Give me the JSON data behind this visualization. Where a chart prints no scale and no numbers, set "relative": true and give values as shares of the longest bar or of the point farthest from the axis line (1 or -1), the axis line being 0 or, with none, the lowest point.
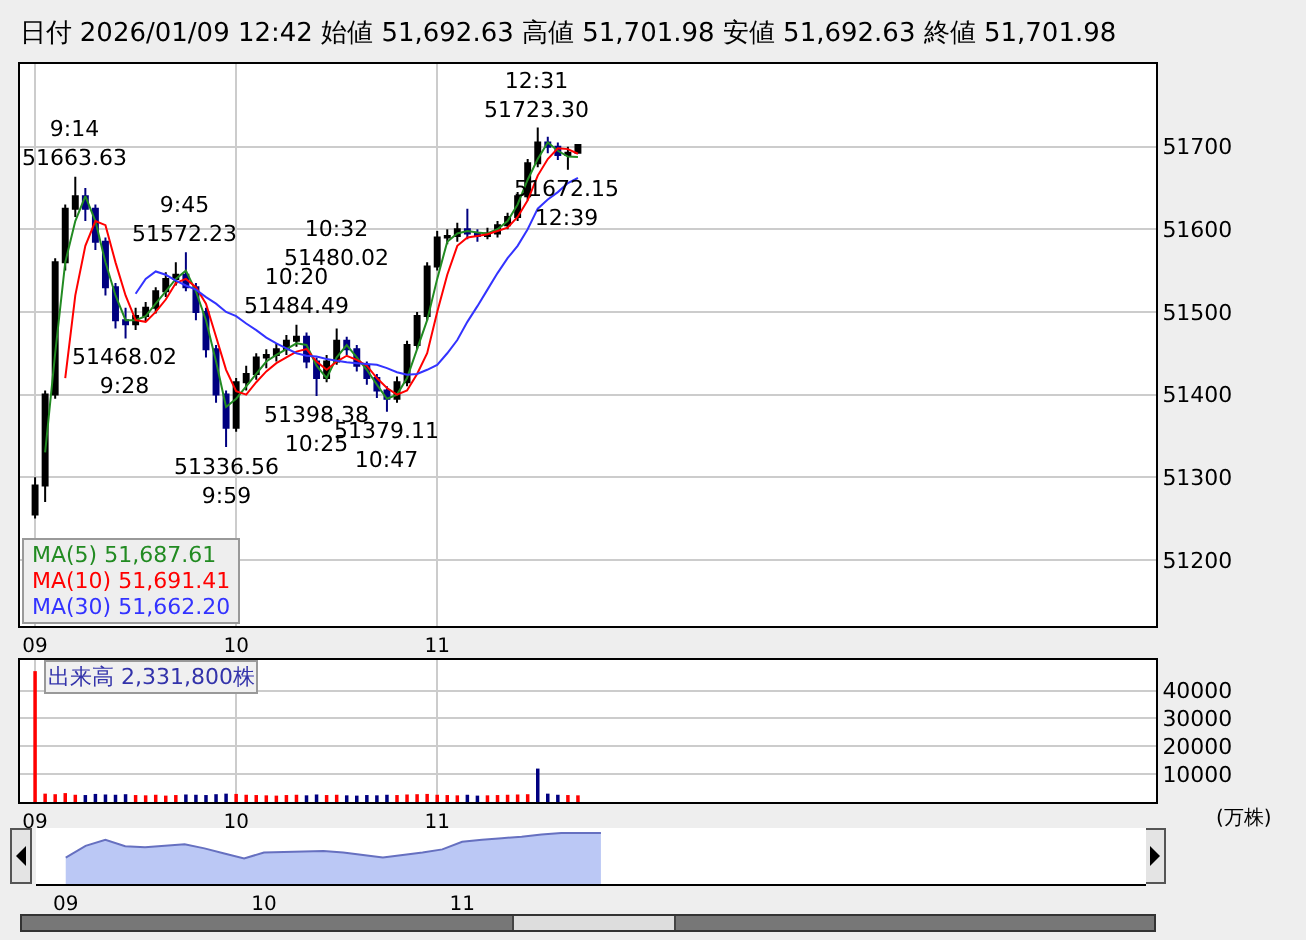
{
  "chart_data": [
    {
      "type": "candlestick",
      "title": "日付 2026/01/09 12:42 始値 51,692.63 高値 51,701.98 安値 51,692.63 終値 51,701.98",
      "categories": [
        "09",
        null,
        null,
        null,
        null,
        null,
        null,
        null,
        null,
        null,
        null,
        null,
        null,
        null,
        null,
        null,
        null,
        null,
        null,
        null,
        "10",
        null,
        null,
        null,
        null,
        null,
        null,
        null,
        null,
        null,
        null,
        null,
        null,
        null,
        null,
        null,
        null,
        null,
        null,
        null,
        "11",
        null,
        null,
        null,
        null,
        null,
        null,
        null,
        null,
        null,
        null,
        null,
        null,
        null,
        null,
        null,
        null,
        null,
        null,
        null,
        null,
        null,
        null,
        null,
        null,
        null,
        null,
        null,
        null,
        null,
        null,
        null,
        null,
        null,
        null,
        null,
        null,
        null,
        null,
        null,
        null,
        null,
        null,
        null,
        null,
        null,
        null,
        null,
        null,
        null,
        null,
        null,
        null,
        null,
        null,
        null,
        null,
        null,
        null,
        null,
        null,
        null,
        null,
        null,
        null,
        null,
        null,
        null,
        null,
        null,
        null,
        null
      ],
      "ohlc": [
        [
          51255,
          51300,
          51250,
          51290
        ],
        [
          51290,
          51405,
          51270,
          51400
        ],
        [
          51400,
          51565,
          51395,
          51560
        ],
        [
          51560,
          51630,
          51550,
          51625
        ],
        [
          51625,
          51663.63,
          51615,
          51640
        ],
        [
          51640,
          51650,
          51610,
          51625
        ],
        [
          51625,
          51630,
          51575,
          51585
        ],
        [
          51585,
          51590,
          51520,
          51530
        ],
        [
          51530,
          51535,
          51480,
          51490
        ],
        [
          51490,
          51505,
          51468.02,
          51485
        ],
        [
          51485,
          51505,
          51478,
          51495
        ],
        [
          51495,
          51512,
          51488,
          51505
        ],
        [
          51505,
          51530,
          51498,
          51525
        ],
        [
          51525,
          51548,
          51518,
          51540
        ],
        [
          51540,
          51560,
          51532,
          51545
        ],
        [
          51545,
          51572.23,
          51525,
          51530
        ],
        [
          51530,
          51535,
          51490,
          51500
        ],
        [
          51500,
          51505,
          51445,
          51455
        ],
        [
          51455,
          51460,
          51390,
          51400
        ],
        [
          51400,
          51405,
          51336.56,
          51360
        ],
        [
          51360,
          51420,
          51355,
          51415
        ],
        [
          51415,
          51435,
          51405,
          51425
        ],
        [
          51425,
          51450,
          51418,
          51445
        ],
        [
          51445,
          51455,
          51432,
          51448
        ],
        [
          51448,
          51462,
          51440,
          51455
        ],
        [
          51455,
          51472,
          51448,
          51465
        ],
        [
          51465,
          51484.49,
          51458,
          51470
        ],
        [
          51470,
          51475,
          51432,
          51440
        ],
        [
          51440,
          51445,
          51398.38,
          51420
        ],
        [
          51420,
          51448,
          51415,
          51440
        ],
        [
          51440,
          51480.02,
          51436,
          51465
        ],
        [
          51465,
          51470,
          51448,
          51455
        ],
        [
          51455,
          51460,
          51428,
          51435
        ],
        [
          51435,
          51440,
          51412,
          51420
        ],
        [
          51420,
          51425,
          51396,
          51405
        ],
        [
          51405,
          51410,
          51379.11,
          51395
        ],
        [
          51395,
          51422,
          51390,
          51415
        ],
        [
          51415,
          51465,
          51410,
          51460
        ],
        [
          51460,
          51500,
          51455,
          51495
        ],
        [
          51495,
          51560,
          51490,
          51555
        ],
        [
          51555,
          51598,
          51550,
          51590
        ],
        [
          51590,
          51600,
          51582,
          51592
        ],
        [
          51592,
          51608,
          51585,
          51600
        ],
        [
          51600,
          51625,
          51588,
          51595
        ],
        [
          51595,
          51600,
          51585,
          51592
        ],
        [
          51592,
          51602,
          51588,
          51595
        ],
        [
          51595,
          51610,
          51590,
          51605
        ],
        [
          51605,
          51620,
          51600,
          51615
        ],
        [
          51615,
          51645,
          51610,
          51640
        ],
        [
          51640,
          51685,
          51635,
          51680
        ],
        [
          51680,
          51723.3,
          51675,
          51705
        ],
        [
          51705,
          51712,
          51692,
          51700
        ],
        [
          51700,
          51705,
          51684,
          51690
        ],
        [
          51690,
          51700,
          51672.15,
          51692.63
        ],
        [
          51692.63,
          51701.98,
          51692.63,
          51701.98
        ],
        null,
        null,
        null,
        null,
        null,
        null,
        null,
        null,
        null,
        null,
        null,
        null,
        null,
        null,
        null,
        null,
        null,
        null,
        null,
        null,
        null,
        null,
        null,
        null,
        null,
        null,
        null,
        null,
        null,
        null,
        null,
        null,
        null,
        null,
        null,
        null,
        null,
        null,
        null,
        null,
        null,
        null,
        null,
        null,
        null,
        null,
        null,
        null,
        null,
        null,
        null,
        null,
        null,
        null,
        null,
        null,
        null
      ],
      "colors": [
        "#000000",
        "#000000",
        "#000000",
        "#000000",
        "#000000",
        "#000080",
        "#000080",
        "#000080",
        "#000080",
        "#000080",
        "#000000",
        "#000000",
        "#000000",
        "#000000",
        "#000000",
        "#000080",
        "#000080",
        "#000080",
        "#000080",
        "#000080",
        "#000000",
        "#000000",
        "#000000",
        "#000000",
        "#000000",
        "#000000",
        "#000000",
        "#000080",
        "#000080",
        "#000000",
        "#000000",
        "#000080",
        "#000080",
        "#000080",
        "#000080",
        "#000080",
        "#000000",
        "#000000",
        "#000000",
        "#000000",
        "#000000",
        "#000000",
        "#000000",
        "#000080",
        "#000080",
        "#000000",
        "#000000",
        "#000000",
        "#000000",
        "#000000",
        "#000000",
        "#000080",
        "#000080",
        "#000000",
        "#000000",
        null,
        null,
        null,
        null,
        null,
        null,
        null,
        null,
        null,
        null,
        null,
        null,
        null,
        null,
        null,
        null,
        null,
        null,
        null,
        null,
        null,
        null,
        null,
        null,
        null,
        null,
        null,
        null,
        null,
        null,
        null,
        null,
        null,
        null,
        null,
        null,
        null,
        null,
        null,
        null,
        null,
        null,
        null,
        null,
        null,
        null,
        null,
        null,
        null,
        null,
        null,
        null,
        null,
        null,
        null,
        null,
        null
      ],
      "series": [
        {
          "name": "MA(5) 51,687.61",
          "type": "line",
          "color": "#228b22",
          "values": [
            null,
            51330,
            51450,
            51560,
            51610,
            51640,
            51610,
            51560,
            51520,
            51490,
            51490,
            51495,
            51510,
            51525,
            51540,
            51550,
            51525,
            51490,
            51440,
            51385,
            51395,
            51410,
            51425,
            51440,
            51448,
            51455,
            51462,
            51460,
            51435,
            51420,
            51445,
            51460,
            51445,
            51430,
            51412,
            51395,
            51400,
            51420,
            51455,
            51490,
            51540,
            51585,
            51595,
            51598,
            51596,
            51595,
            51600,
            51610,
            51630,
            51660,
            51685,
            51705,
            51695,
            51688,
            51687.61,
            null,
            null,
            null,
            null,
            null,
            null,
            null,
            null,
            null,
            null,
            null,
            null,
            null,
            null,
            null,
            null,
            null,
            null,
            null,
            null,
            null,
            null,
            null,
            null,
            null,
            null,
            null,
            null,
            null,
            null,
            null,
            null,
            null,
            null,
            null,
            null,
            null,
            null,
            null,
            null,
            null,
            null,
            null,
            null,
            null,
            null,
            null,
            null,
            null,
            null,
            null,
            null,
            null,
            null,
            null,
            null,
            null
          ]
        },
        {
          "name": "MA(10) 51,691.41",
          "type": "line",
          "color": "#ff0000",
          "values": [
            null,
            null,
            null,
            51420,
            51520,
            51580,
            51610,
            51605,
            51560,
            51520,
            51490,
            51488,
            51500,
            51515,
            51535,
            51540,
            51530,
            51510,
            51470,
            51430,
            51404,
            51400,
            51415,
            51428,
            51438,
            51445,
            51452,
            51455,
            51440,
            51430,
            51440,
            51447,
            51442,
            51435,
            51420,
            51408,
            51400,
            51405,
            51425,
            51450,
            51500,
            51545,
            51580,
            51590,
            51592,
            51594,
            51598,
            51602,
            51615,
            51635,
            51665,
            51685,
            51698,
            51697,
            51691.41,
            null,
            null,
            null,
            null,
            null,
            null,
            null,
            null,
            null,
            null,
            null,
            null,
            null,
            null,
            null,
            null,
            null,
            null,
            null,
            null,
            null,
            null,
            null,
            null,
            null,
            null,
            null,
            null,
            null,
            null,
            null,
            null,
            null,
            null,
            null,
            null,
            null,
            null,
            null,
            null,
            null,
            null,
            null,
            null,
            null,
            null,
            null,
            null,
            null,
            null,
            null,
            null,
            null,
            null,
            null,
            null,
            null
          ]
        },
        {
          "name": "MA(30) 51,662.20",
          "type": "line",
          "color": "#3333ff",
          "values": [
            null,
            null,
            null,
            null,
            null,
            null,
            null,
            null,
            null,
            null,
            51522,
            51540,
            51549,
            51545,
            51538,
            51532,
            51527,
            51518,
            51510,
            51500,
            51495,
            51486,
            51478,
            51469,
            51462,
            51456,
            51450,
            51447,
            51446,
            51443,
            51441,
            51439,
            51438,
            51437,
            51436,
            51432,
            51427,
            51424,
            51425,
            51430,
            51436,
            51450,
            51466,
            51488,
            51507,
            51527,
            51547,
            51565,
            51580,
            51600,
            51625,
            51636,
            51645,
            51656,
            51662.2,
            null,
            null,
            null,
            null,
            null,
            null,
            null,
            null,
            null,
            null,
            null,
            null,
            null,
            null,
            null,
            null,
            null,
            null,
            null,
            null,
            null,
            null,
            null,
            null,
            null,
            null,
            null,
            null,
            null,
            null,
            null,
            null,
            null,
            null,
            null,
            null,
            null,
            null,
            null,
            null,
            null,
            null,
            null,
            null,
            null,
            null,
            null,
            null,
            null,
            null,
            null,
            null,
            null,
            null,
            null,
            null,
            null
          ]
        }
      ],
      "ylim": [
        51120,
        51800
      ],
      "yticks": [
        51200,
        51300,
        51400,
        51500,
        51600,
        51700
      ],
      "annotations": [
        {
          "text": "9:14\n51663.63",
          "y": 51663.63
        },
        {
          "text": "51468.02\n9:28",
          "y": 51468.02
        },
        {
          "text": "9:45\n51572.23",
          "y": 51572.23
        },
        {
          "text": "51336.56\n9:59",
          "y": 51336.56
        },
        {
          "text": "10:20\n51484.49",
          "y": 51484.49
        },
        {
          "text": "51398.38\n10:25",
          "y": 51398.38
        },
        {
          "text": "10:32\n51480.02",
          "y": 51480.02
        },
        {
          "text": "51379.11\n10:47",
          "y": 51379.11
        },
        {
          "text": "12:31\n51723.30",
          "y": 51723.3
        },
        {
          "text": "51672.15\n12:39",
          "y": 51672.15
        }
      ],
      "grid": true,
      "legend": "bottom left"
    },
    {
      "type": "bar",
      "title": "出来高 2,331,800株",
      "ylabel": "(万株)",
      "categories": [
        "09",
        null,
        null,
        null,
        null,
        null,
        null,
        null,
        null,
        null,
        null,
        null,
        null,
        null,
        null,
        null,
        null,
        null,
        null,
        null,
        "10",
        null,
        null,
        null,
        null,
        null,
        null,
        null,
        null,
        null,
        null,
        null,
        null,
        null,
        null,
        null,
        null,
        null,
        null,
        null,
        "11",
        null,
        null,
        null,
        null,
        null,
        null,
        null,
        null,
        null,
        null,
        null,
        null,
        null,
        null,
        null,
        null,
        null,
        null,
        null,
        null,
        null,
        null,
        null,
        null,
        null,
        null,
        null,
        null,
        null,
        null,
        null,
        null,
        null,
        null,
        null,
        null,
        null,
        null,
        null,
        null,
        null,
        null,
        null,
        null,
        null,
        null,
        null,
        null,
        null,
        null,
        null,
        null,
        null,
        null,
        null,
        null,
        null,
        null,
        null,
        null,
        null,
        null,
        null,
        null,
        null,
        null,
        null,
        null,
        null,
        null,
        null
      ],
      "values": [
        47000,
        3000,
        2800,
        3200,
        2600,
        2500,
        2900,
        2700,
        2600,
        2800,
        2500,
        2400,
        2600,
        2300,
        2500,
        2700,
        2600,
        2500,
        2800,
        3000,
        2900,
        2600,
        2500,
        2400,
        2300,
        2500,
        2600,
        2400,
        2700,
        2500,
        2600,
        2400,
        2300,
        2500,
        2400,
        2600,
        2500,
        2700,
        2800,
        2900,
        2600,
        2500,
        2400,
        2600,
        2300,
        2400,
        2500,
        2600,
        2700,
        2800,
        12000,
        3000,
        2600,
        2500,
        2400,
        null,
        null,
        null,
        null,
        null,
        null,
        null,
        null,
        null,
        null,
        null,
        null,
        null,
        null,
        null,
        null,
        null,
        null,
        null,
        null,
        null,
        null,
        null,
        null,
        null,
        null,
        null,
        null,
        null,
        null,
        null,
        null,
        null,
        null,
        null,
        null,
        null,
        null,
        null,
        null,
        null,
        null,
        null,
        null,
        null,
        null,
        null,
        null,
        null,
        null,
        null,
        null,
        null,
        null,
        null,
        null,
        null
      ],
      "colors": [
        "#ff0000",
        "#ff0000",
        "#ff0000",
        "#ff0000",
        "#ff0000",
        "#000080",
        "#000080",
        "#000080",
        "#000080",
        "#000080",
        "#ff0000",
        "#ff0000",
        "#ff0000",
        "#ff0000",
        "#ff0000",
        "#000080",
        "#000080",
        "#000080",
        "#000080",
        "#000080",
        "#ff0000",
        "#ff0000",
        "#ff0000",
        "#ff0000",
        "#ff0000",
        "#ff0000",
        "#ff0000",
        "#000080",
        "#000080",
        "#ff0000",
        "#ff0000",
        "#000080",
        "#000080",
        "#000080",
        "#000080",
        "#000080",
        "#ff0000",
        "#ff0000",
        "#ff0000",
        "#ff0000",
        "#ff0000",
        "#ff0000",
        "#ff0000",
        "#000080",
        "#000080",
        "#ff0000",
        "#ff0000",
        "#ff0000",
        "#ff0000",
        "#ff0000",
        "#000080",
        "#000080",
        "#000080",
        "#ff0000",
        "#ff0000",
        null,
        null,
        null,
        null,
        null,
        null,
        null,
        null,
        null,
        null,
        null,
        null,
        null,
        null,
        null,
        null,
        null,
        null,
        null,
        null,
        null,
        null,
        null,
        null,
        null,
        null,
        null,
        null,
        null,
        null,
        null,
        null,
        null,
        null,
        null,
        null,
        null,
        null,
        null,
        null,
        null,
        null,
        null,
        null,
        null,
        null,
        null,
        null,
        null,
        null,
        null,
        null,
        null,
        null,
        null,
        null,
        null
      ],
      "ylim": [
        0,
        51000
      ],
      "yticks": [
        10000,
        20000,
        30000,
        40000
      ],
      "grid": true
    },
    {
      "type": "area",
      "relative": true,
      "color": "#6670c0",
      "categories": [
        "09",
        null,
        null,
        null,
        null,
        null,
        null,
        null,
        null,
        null,
        "10",
        null,
        null,
        null,
        null,
        null,
        null,
        null,
        null,
        null,
        "11",
        null,
        null,
        null,
        null,
        null,
        null,
        null,
        null,
        null,
        null,
        null,
        null,
        null,
        null,
        null,
        null,
        null,
        null,
        null,
        null,
        null,
        null,
        null,
        null,
        null,
        null,
        null,
        null,
        null,
        null,
        null,
        null,
        null,
        null
      ],
      "values": [
        0.52,
        0.75,
        0.87,
        0.74,
        0.72,
        0.75,
        0.78,
        0.7,
        0.6,
        0.5,
        0.62,
        0.63,
        0.64,
        0.65,
        0.62,
        0.57,
        0.52,
        0.57,
        0.62,
        0.68,
        0.83,
        0.87,
        0.9,
        0.93,
        0.97,
        1,
        1,
        1,
        null,
        null,
        null,
        null,
        null,
        null,
        null,
        null,
        null,
        null,
        null,
        null,
        null,
        null,
        null,
        null,
        null,
        null,
        null,
        null,
        null,
        null,
        null,
        null,
        null,
        null,
        null
      ],
      "tick_labels": "x"
    }
  ]
}
